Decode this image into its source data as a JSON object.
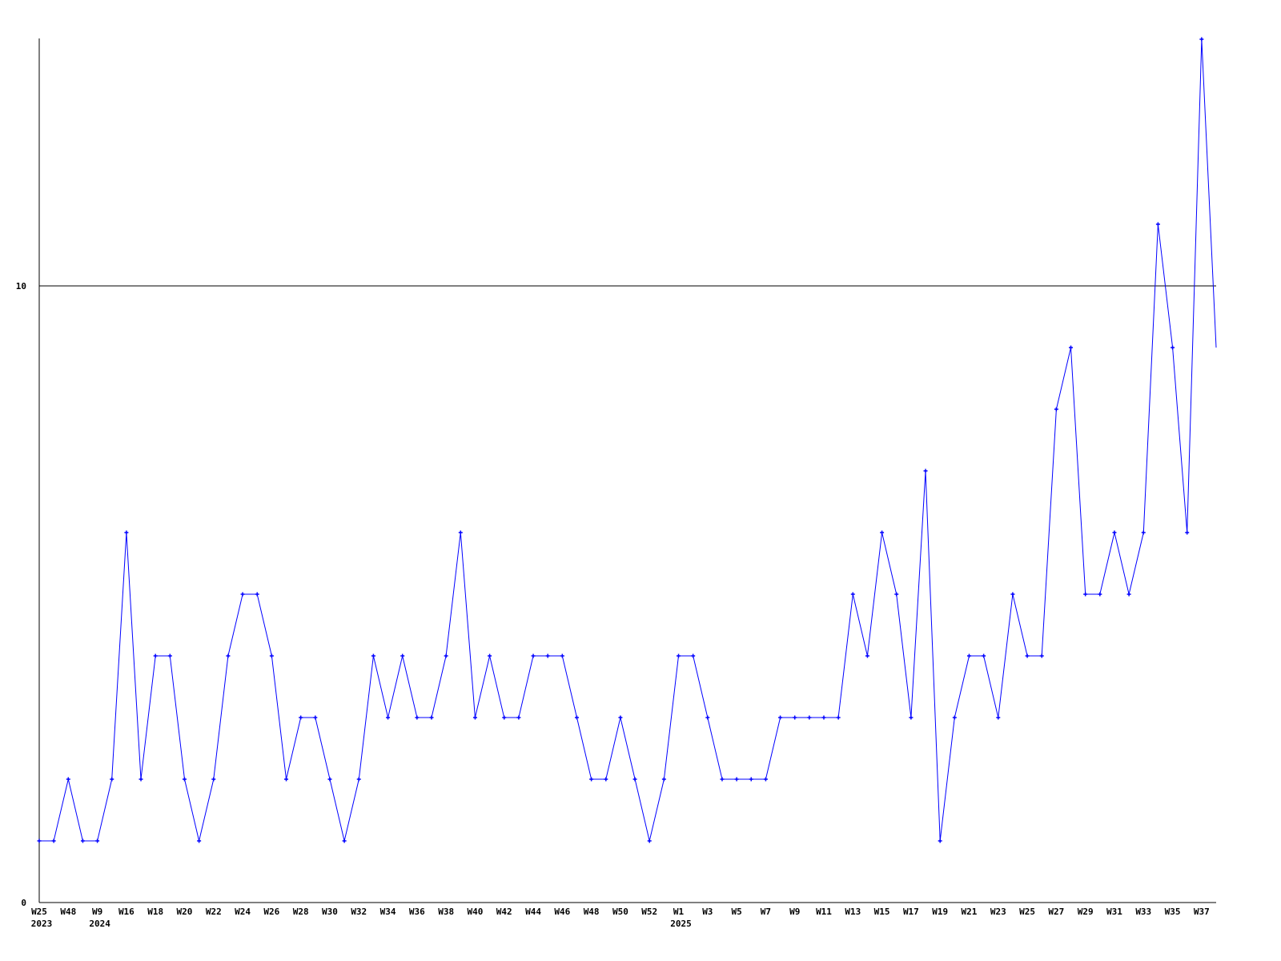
{
  "chart_data": {
    "type": "line",
    "title": "",
    "xlabel": "",
    "ylabel": "",
    "ylim": [
      0,
      14
    ],
    "y_ticks": [
      {
        "value": 0,
        "label": "0"
      },
      {
        "value": 10,
        "label": "10"
      }
    ],
    "grid": "horizontal line at 10 only",
    "legend": "none",
    "line_color": "#0000ff",
    "axis_color": "#000000",
    "values": [
      1,
      1,
      2,
      1,
      1,
      2,
      6,
      2,
      4,
      4,
      2,
      1,
      2,
      4,
      5,
      5,
      4,
      2,
      3,
      3,
      2,
      1,
      2,
      4,
      3,
      4,
      3,
      3,
      4,
      6,
      3,
      4,
      3,
      3,
      4,
      4,
      4,
      3,
      2,
      2,
      3,
      2,
      1,
      2,
      4,
      4,
      3,
      2,
      2,
      2,
      2,
      3,
      3,
      3,
      3,
      3,
      5,
      4,
      6,
      5,
      3,
      7,
      1,
      3,
      4,
      4,
      3,
      5,
      4,
      4,
      8,
      9,
      5,
      5,
      6,
      5,
      6,
      11,
      9,
      6,
      14,
      9
    ],
    "x_ticks": [
      {
        "index": 0,
        "label": "W25",
        "year": "2023"
      },
      {
        "index": 2,
        "label": "W48"
      },
      {
        "index": 4,
        "label": "W9",
        "year": "2024"
      },
      {
        "index": 6,
        "label": "W16"
      },
      {
        "index": 8,
        "label": "W18"
      },
      {
        "index": 10,
        "label": "W20"
      },
      {
        "index": 12,
        "label": "W22"
      },
      {
        "index": 14,
        "label": "W24"
      },
      {
        "index": 16,
        "label": "W26"
      },
      {
        "index": 18,
        "label": "W28"
      },
      {
        "index": 20,
        "label": "W30"
      },
      {
        "index": 22,
        "label": "W32"
      },
      {
        "index": 24,
        "label": "W34"
      },
      {
        "index": 26,
        "label": "W36"
      },
      {
        "index": 28,
        "label": "W38"
      },
      {
        "index": 30,
        "label": "W40"
      },
      {
        "index": 32,
        "label": "W42"
      },
      {
        "index": 34,
        "label": "W44"
      },
      {
        "index": 36,
        "label": "W46"
      },
      {
        "index": 38,
        "label": "W48"
      },
      {
        "index": 40,
        "label": "W50"
      },
      {
        "index": 42,
        "label": "W52"
      },
      {
        "index": 44,
        "label": "W1",
        "year": "2025"
      },
      {
        "index": 46,
        "label": "W3"
      },
      {
        "index": 48,
        "label": "W5"
      },
      {
        "index": 50,
        "label": "W7"
      },
      {
        "index": 52,
        "label": "W9"
      },
      {
        "index": 54,
        "label": "W11"
      },
      {
        "index": 56,
        "label": "W13"
      },
      {
        "index": 58,
        "label": "W15"
      },
      {
        "index": 60,
        "label": "W17"
      },
      {
        "index": 62,
        "label": "W19"
      },
      {
        "index": 64,
        "label": "W21"
      },
      {
        "index": 66,
        "label": "W23"
      },
      {
        "index": 68,
        "label": "W25"
      },
      {
        "index": 70,
        "label": "W27"
      },
      {
        "index": 72,
        "label": "W29"
      },
      {
        "index": 74,
        "label": "W31"
      },
      {
        "index": 76,
        "label": "W33"
      },
      {
        "index": 78,
        "label": "W35"
      },
      {
        "index": 80,
        "label": "W37"
      }
    ]
  }
}
